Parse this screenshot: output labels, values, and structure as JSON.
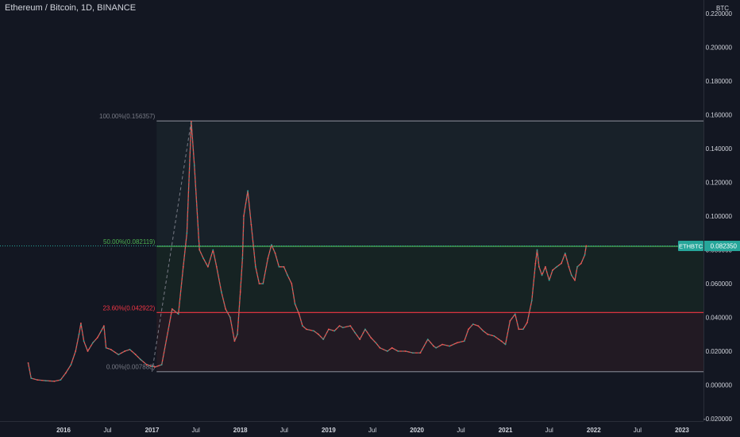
{
  "header": {
    "title": "Ethereum / Bitcoin, 1D, BINANCE"
  },
  "colors": {
    "background": "#131722",
    "axis_text": "#d1d4dc",
    "candle_up": "#26a69a",
    "candle_down": "#ef5350",
    "fib_100": "#787b86",
    "fib_50": "#4caf50",
    "fib_236": "#f23645",
    "fib_0": "#787b86",
    "price_tag": "#26a69a"
  },
  "chart_data": {
    "type": "line",
    "title": "Ethereum / Bitcoin, 1D, BINANCE",
    "ylabel": "BTC",
    "ylim": [
      -0.02,
      0.22
    ],
    "y_ticks": [
      "0.220000",
      "0.200000",
      "0.180000",
      "0.160000",
      "0.140000",
      "0.120000",
      "0.100000",
      "0.080000",
      "0.060000",
      "0.040000",
      "0.020000",
      "0.000000",
      "-0.020000"
    ],
    "y_tick_values": [
      0.22,
      0.2,
      0.18,
      0.16,
      0.14,
      0.12,
      0.1,
      0.08,
      0.06,
      0.04,
      0.02,
      0.0,
      -0.02
    ],
    "x_ticks": [
      "2016",
      "Jul",
      "2017",
      "Jul",
      "2018",
      "Jul",
      "2019",
      "Jul",
      "2020",
      "Jul",
      "2021",
      "Jul",
      "2022",
      "Jul",
      "2023"
    ],
    "x_tick_dates": [
      "2016-01-01",
      "2016-07-01",
      "2017-01-01",
      "2017-07-01",
      "2018-01-01",
      "2018-07-01",
      "2019-01-01",
      "2019-07-01",
      "2020-01-01",
      "2020-07-01",
      "2021-01-01",
      "2021-07-01",
      "2022-01-01",
      "2022-07-01",
      "2023-01-01"
    ],
    "series": [
      {
        "values": [
          [
            "2015-08-08",
            0.013
          ],
          [
            "2015-08-20",
            0.004
          ],
          [
            "2015-09-15",
            0.003
          ],
          [
            "2015-10-20",
            0.0025
          ],
          [
            "2015-11-25",
            0.0022
          ],
          [
            "2015-12-20",
            0.003
          ],
          [
            "2016-01-10",
            0.007
          ],
          [
            "2016-02-01",
            0.012
          ],
          [
            "2016-02-20",
            0.02
          ],
          [
            "2016-03-05",
            0.03
          ],
          [
            "2016-03-13",
            0.0365
          ],
          [
            "2016-03-25",
            0.026
          ],
          [
            "2016-04-10",
            0.02
          ],
          [
            "2016-05-01",
            0.025
          ],
          [
            "2016-05-20",
            0.028
          ],
          [
            "2016-06-05",
            0.032
          ],
          [
            "2016-06-16",
            0.035
          ],
          [
            "2016-06-25",
            0.022
          ],
          [
            "2016-07-15",
            0.021
          ],
          [
            "2016-08-15",
            0.018
          ],
          [
            "2016-09-10",
            0.02
          ],
          [
            "2016-10-01",
            0.021
          ],
          [
            "2016-10-25",
            0.018
          ],
          [
            "2016-11-15",
            0.015
          ],
          [
            "2016-12-10",
            0.012
          ],
          [
            "2017-01-01",
            0.011
          ],
          [
            "2017-01-15",
            0.0107
          ],
          [
            "2017-02-10",
            0.012
          ],
          [
            "2017-03-25",
            0.045
          ],
          [
            "2017-04-20",
            0.042
          ],
          [
            "2017-05-10",
            0.07
          ],
          [
            "2017-05-25",
            0.09
          ],
          [
            "2017-06-12",
            0.156
          ],
          [
            "2017-06-25",
            0.13
          ],
          [
            "2017-07-16",
            0.08
          ],
          [
            "2017-08-01",
            0.075
          ],
          [
            "2017-08-20",
            0.07
          ],
          [
            "2017-09-10",
            0.08
          ],
          [
            "2017-09-25",
            0.07
          ],
          [
            "2017-10-15",
            0.055
          ],
          [
            "2017-11-01",
            0.045
          ],
          [
            "2017-11-20",
            0.04
          ],
          [
            "2017-12-08",
            0.026
          ],
          [
            "2017-12-20",
            0.03
          ],
          [
            "2018-01-01",
            0.055
          ],
          [
            "2018-01-10",
            0.075
          ],
          [
            "2018-01-15",
            0.1
          ],
          [
            "2018-02-01",
            0.115
          ],
          [
            "2018-02-15",
            0.095
          ],
          [
            "2018-03-05",
            0.07
          ],
          [
            "2018-03-20",
            0.06
          ],
          [
            "2018-04-05",
            0.06
          ],
          [
            "2018-04-25",
            0.075
          ],
          [
            "2018-05-10",
            0.083
          ],
          [
            "2018-05-25",
            0.078
          ],
          [
            "2018-06-10",
            0.07
          ],
          [
            "2018-06-30",
            0.07
          ],
          [
            "2018-07-15",
            0.065
          ],
          [
            "2018-08-01",
            0.06
          ],
          [
            "2018-08-15",
            0.048
          ],
          [
            "2018-09-01",
            0.042
          ],
          [
            "2018-09-15",
            0.035
          ],
          [
            "2018-10-01",
            0.033
          ],
          [
            "2018-11-01",
            0.032
          ],
          [
            "2018-11-20",
            0.03
          ],
          [
            "2018-12-10",
            0.027
          ],
          [
            "2019-01-01",
            0.033
          ],
          [
            "2019-01-25",
            0.032
          ],
          [
            "2019-02-15",
            0.035
          ],
          [
            "2019-03-01",
            0.034
          ],
          [
            "2019-04-01",
            0.035
          ],
          [
            "2019-04-20",
            0.031
          ],
          [
            "2019-05-10",
            0.027
          ],
          [
            "2019-06-01",
            0.033
          ],
          [
            "2019-06-25",
            0.028
          ],
          [
            "2019-07-15",
            0.025
          ],
          [
            "2019-08-01",
            0.022
          ],
          [
            "2019-09-01",
            0.02
          ],
          [
            "2019-09-20",
            0.022
          ],
          [
            "2019-10-15",
            0.02
          ],
          [
            "2019-11-15",
            0.02
          ],
          [
            "2019-12-15",
            0.019
          ],
          [
            "2020-01-15",
            0.019
          ],
          [
            "2020-02-15",
            0.027
          ],
          [
            "2020-03-10",
            0.023
          ],
          [
            "2020-03-20",
            0.022
          ],
          [
            "2020-04-15",
            0.024
          ],
          [
            "2020-05-15",
            0.023
          ],
          [
            "2020-06-15",
            0.025
          ],
          [
            "2020-07-15",
            0.026
          ],
          [
            "2020-08-01",
            0.033
          ],
          [
            "2020-08-20",
            0.036
          ],
          [
            "2020-09-10",
            0.035
          ],
          [
            "2020-10-01",
            0.032
          ],
          [
            "2020-10-20",
            0.03
          ],
          [
            "2020-11-15",
            0.029
          ],
          [
            "2020-12-15",
            0.026
          ],
          [
            "2021-01-01",
            0.024
          ],
          [
            "2021-01-20",
            0.038
          ],
          [
            "2021-02-10",
            0.042
          ],
          [
            "2021-02-25",
            0.033
          ],
          [
            "2021-03-15",
            0.033
          ],
          [
            "2021-04-01",
            0.037
          ],
          [
            "2021-04-20",
            0.05
          ],
          [
            "2021-05-05",
            0.072
          ],
          [
            "2021-05-12",
            0.08
          ],
          [
            "2021-05-20",
            0.07
          ],
          [
            "2021-06-01",
            0.065
          ],
          [
            "2021-06-15",
            0.07
          ],
          [
            "2021-07-01",
            0.062
          ],
          [
            "2021-07-15",
            0.068
          ],
          [
            "2021-08-01",
            0.07
          ],
          [
            "2021-08-20",
            0.072
          ],
          [
            "2021-09-05",
            0.078
          ],
          [
            "2021-09-20",
            0.07
          ],
          [
            "2021-10-01",
            0.065
          ],
          [
            "2021-10-15",
            0.062
          ],
          [
            "2021-10-25",
            0.07
          ],
          [
            "2021-11-10",
            0.072
          ],
          [
            "2021-11-25",
            0.077
          ],
          [
            "2021-12-01",
            0.0824
          ]
        ]
      }
    ],
    "fib_levels": [
      {
        "label": "100.00%(0.156357)",
        "value": 0.156357,
        "color": "#787b86"
      },
      {
        "label": "50.00%(0.082119)",
        "value": 0.082119,
        "color": "#4caf50"
      },
      {
        "label": "23.60%(0.042922)",
        "value": 0.042922,
        "color": "#f23645"
      },
      {
        "label": "0.00%(0.007888)",
        "value": 0.007888,
        "color": "#787b86"
      }
    ],
    "price_tag": {
      "symbol": "ETHBTC",
      "value": "0.082350"
    },
    "grid": false
  }
}
